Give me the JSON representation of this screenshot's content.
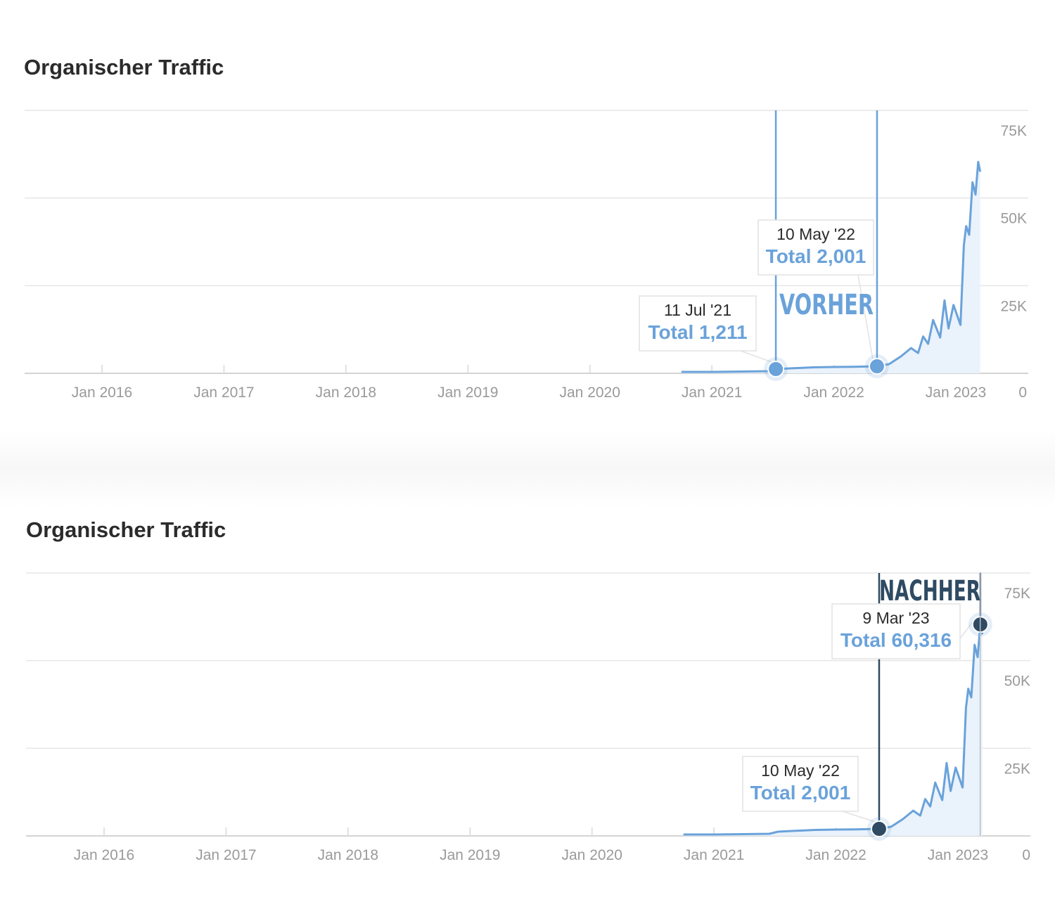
{
  "chart_data": [
    {
      "type": "area",
      "title": "Organischer Traffic",
      "y_axis_position": "right",
      "ylim": [
        0,
        75000
      ],
      "y_ticks": [
        {
          "value": 75000,
          "label": "75K"
        },
        {
          "value": 50000,
          "label": "50K"
        },
        {
          "value": 25000,
          "label": "25K"
        },
        {
          "value": 0,
          "label": "0"
        }
      ],
      "x_ticks": [
        "Jan 2016",
        "Jan 2017",
        "Jan 2018",
        "Jan 2019",
        "Jan 2020",
        "Jan 2021",
        "Jan 2022",
        "Jan 2023"
      ],
      "grid": true,
      "series": [
        {
          "x": [
            "2020-10-01",
            "2021-01-01",
            "2021-04-01",
            "2021-06-15",
            "2021-07-11",
            "2021-09-01",
            "2021-11-01",
            "2022-01-01",
            "2022-03-01",
            "2022-05-10",
            "2022-06-15",
            "2022-07-20",
            "2022-08-20",
            "2022-09-10",
            "2022-09-25",
            "2022-10-10",
            "2022-10-25",
            "2022-11-15",
            "2022-11-28",
            "2022-12-10",
            "2022-12-25",
            "2023-01-15",
            "2023-01-25",
            "2023-02-01",
            "2023-02-10",
            "2023-02-20",
            "2023-03-01",
            "2023-03-09",
            "2023-03-15"
          ],
          "y": [
            400,
            400,
            500,
            600,
            1211,
            1450,
            1700,
            1800,
            1850,
            2001,
            2600,
            4800,
            7200,
            5800,
            10500,
            8400,
            15200,
            10200,
            20800,
            12800,
            19500,
            13800,
            36500,
            42000,
            39500,
            54500,
            51000,
            60316,
            57500
          ]
        }
      ],
      "annotations": [
        {
          "date": "11 Jul '21",
          "total_label": "Total 1,211",
          "x": "2021-07-11",
          "y": 1211
        },
        {
          "date": "10 May '22",
          "total_label": "Total 2,001",
          "x": "2022-05-10",
          "y": 2001
        }
      ],
      "stamp": "VORHER"
    },
    {
      "type": "area",
      "title": "Organischer Traffic",
      "y_axis_position": "right",
      "ylim": [
        0,
        75000
      ],
      "y_ticks": [
        {
          "value": 75000,
          "label": "75K"
        },
        {
          "value": 50000,
          "label": "50K"
        },
        {
          "value": 25000,
          "label": "25K"
        },
        {
          "value": 0,
          "label": "0"
        }
      ],
      "x_ticks": [
        "Jan 2016",
        "Jan 2017",
        "Jan 2018",
        "Jan 2019",
        "Jan 2020",
        "Jan 2021",
        "Jan 2022",
        "Jan 2023"
      ],
      "grid": true,
      "series": [
        {
          "x": [
            "2020-10-01",
            "2021-01-01",
            "2021-04-01",
            "2021-06-15",
            "2021-07-11",
            "2021-09-01",
            "2021-11-01",
            "2022-01-01",
            "2022-03-01",
            "2022-05-10",
            "2022-06-15",
            "2022-07-20",
            "2022-08-20",
            "2022-09-10",
            "2022-09-25",
            "2022-10-10",
            "2022-10-25",
            "2022-11-15",
            "2022-11-28",
            "2022-12-10",
            "2022-12-25",
            "2023-01-15",
            "2023-01-25",
            "2023-02-01",
            "2023-02-10",
            "2023-02-20",
            "2023-03-01",
            "2023-03-09",
            "2023-03-15"
          ],
          "y": [
            400,
            400,
            500,
            600,
            1211,
            1450,
            1700,
            1800,
            1850,
            2001,
            2600,
            4800,
            7200,
            5800,
            10500,
            8400,
            15200,
            10200,
            20800,
            12800,
            19500,
            13800,
            36500,
            42000,
            39500,
            54500,
            51000,
            60316,
            57500
          ]
        }
      ],
      "annotations": [
        {
          "date": "10 May '22",
          "total_label": "Total 2,001",
          "x": "2022-05-10",
          "y": 2001
        },
        {
          "date": "9 Mar '23",
          "total_label": "Total 60,316",
          "x": "2023-03-09",
          "y": 60316
        }
      ],
      "stamp": "NACHHER"
    }
  ],
  "colors": {
    "series": "#6aa2da",
    "area": "#eaf2fb",
    "grid": "#e6e6e6",
    "tick_text": "#9a9a9a",
    "marker_before": "#6aa2da",
    "marker_after": "#2f4a63"
  }
}
